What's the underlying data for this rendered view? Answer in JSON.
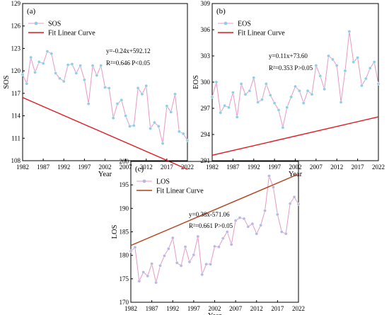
{
  "chart_data": [
    {
      "type": "line",
      "panel_label": "(a)",
      "ylabel": "SOS",
      "xlabel": "Year",
      "xlim": [
        1982,
        2022
      ],
      "ylim": [
        108,
        129
      ],
      "xticks": [
        "1982",
        "1987",
        "1992",
        "1997",
        "2002",
        "2007",
        "2012",
        "2017",
        "2022"
      ],
      "yticks": [
        "108",
        "111",
        "114",
        "117",
        "120",
        "123",
        "126",
        "129"
      ],
      "series": [
        {
          "name": "SOS",
          "color": "#e699c4",
          "marker_color": "#8ecfe8",
          "x": [
            1982,
            1983,
            1984,
            1985,
            1986,
            1987,
            1988,
            1989,
            1990,
            1991,
            1992,
            1993,
            1994,
            1995,
            1996,
            1997,
            1998,
            1999,
            2000,
            2001,
            2002,
            2003,
            2004,
            2005,
            2006,
            2007,
            2008,
            2009,
            2010,
            2011,
            2012,
            2013,
            2014,
            2015,
            2016,
            2017,
            2018,
            2019,
            2020,
            2021,
            2022
          ],
          "values": [
            119.5,
            118.3,
            121.8,
            119.8,
            121.2,
            121.0,
            122.6,
            122.3,
            119.7,
            119.0,
            118.6,
            120.8,
            120.9,
            119.7,
            120.7,
            118.8,
            115.6,
            120.7,
            119.4,
            120.7,
            117.8,
            117.7,
            113.7,
            115.6,
            116.1,
            114.0,
            112.6,
            112.7,
            117.7,
            116.9,
            118.0,
            112.3,
            113.1,
            112.6,
            110.3,
            115.3,
            114.5,
            116.9,
            111.9,
            111.6,
            110.7
          ]
        },
        {
          "name": "Fit Linear Curve",
          "color": "#e0181f",
          "type": "fit",
          "slope": -0.24,
          "intercept": 592.12
        }
      ],
      "annotation": [
        "y=-0.24x+592.12",
        "R²=0.646 P<0.05"
      ],
      "legend_position": "top-left"
    },
    {
      "type": "line",
      "panel_label": "(b)",
      "ylabel": "EOS",
      "xlabel": "Year",
      "xlim": [
        1982,
        2022
      ],
      "ylim": [
        291,
        309
      ],
      "xticks": [
        "1982",
        "1987",
        "1992",
        "1997",
        "2002",
        "2007",
        "2012",
        "2017",
        "2022"
      ],
      "yticks": [
        "291",
        "294",
        "297",
        "300",
        "303",
        "306",
        "309"
      ],
      "series": [
        {
          "name": "EOS",
          "color": "#e699c4",
          "marker_color": "#8ecfe8",
          "x": [
            1982,
            1983,
            1984,
            1985,
            1986,
            1987,
            1988,
            1989,
            1990,
            1991,
            1992,
            1993,
            1994,
            1995,
            1996,
            1997,
            1998,
            1999,
            2000,
            2001,
            2002,
            2003,
            2004,
            2005,
            2006,
            2007,
            2008,
            2009,
            2010,
            2011,
            2012,
            2013,
            2014,
            2015,
            2016,
            2017,
            2018,
            2019,
            2020,
            2021,
            2022
          ],
          "values": [
            298.3,
            300.0,
            296.5,
            297.3,
            297.1,
            298.8,
            296.0,
            299.8,
            298.6,
            299.0,
            300.5,
            297.7,
            298.0,
            299.8,
            298.5,
            297.6,
            296.8,
            294.8,
            297.1,
            298.3,
            299.5,
            299.0,
            297.6,
            299.0,
            298.6,
            301.9,
            300.7,
            299.2,
            303.0,
            302.6,
            301.9,
            297.7,
            301.3,
            305.8,
            302.3,
            302.8,
            299.6,
            300.4,
            301.6,
            302.3,
            299.8
          ]
        },
        {
          "name": "Fit Linear Curve",
          "color": "#e0181f",
          "type": "fit",
          "slope": 0.11,
          "intercept": 73.6
        }
      ],
      "annotation": [
        "y=0.11x+73.60",
        "R²=0.353 P>0.05"
      ],
      "legend_position": "top-left"
    },
    {
      "type": "line",
      "panel_label": "(c)",
      "ylabel": "LOS",
      "xlabel": "Year",
      "xlim": [
        1982,
        2022
      ],
      "ylim": [
        170,
        200
      ],
      "xticks": [
        "1982",
        "1987",
        "1992",
        "1997",
        "2002",
        "2007",
        "2012",
        "2017",
        "2022"
      ],
      "yticks": [
        "170",
        "175",
        "180",
        "185",
        "190",
        "195",
        "200"
      ],
      "series": [
        {
          "name": "LOS",
          "color": "#e699c4",
          "marker_color": "#b7b9e3",
          "x": [
            1982,
            1983,
            1984,
            1985,
            1986,
            1987,
            1988,
            1989,
            1990,
            1991,
            1992,
            1993,
            1994,
            1995,
            1996,
            1997,
            1998,
            1999,
            2000,
            2001,
            2002,
            2003,
            2004,
            2005,
            2006,
            2007,
            2008,
            2009,
            2010,
            2011,
            2012,
            2013,
            2014,
            2015,
            2016,
            2017,
            2018,
            2019,
            2020,
            2021,
            2022
          ],
          "values": [
            180.9,
            181.7,
            174.5,
            176.4,
            175.6,
            178.2,
            174.2,
            177.8,
            179.9,
            181.4,
            183.7,
            178.4,
            177.8,
            181.8,
            178.6,
            180.1,
            184.0,
            175.9,
            178.1,
            178.1,
            181.9,
            181.8,
            183.6,
            185.0,
            182.3,
            187.4,
            188.0,
            187.8,
            186.1,
            186.7,
            184.6,
            186.4,
            189.5,
            196.9,
            194.5,
            188.7,
            185.0,
            184.6,
            191.0,
            192.4,
            190.9
          ]
        },
        {
          "name": "Fit Linear Curve",
          "color": "#b3401a",
          "type": "fit",
          "slope": 0.38,
          "intercept": -571.06
        }
      ],
      "annotation": [
        "y=0.38x-571.06",
        "R²=0.661 P>0.05"
      ],
      "legend_position": "top-left"
    }
  ]
}
